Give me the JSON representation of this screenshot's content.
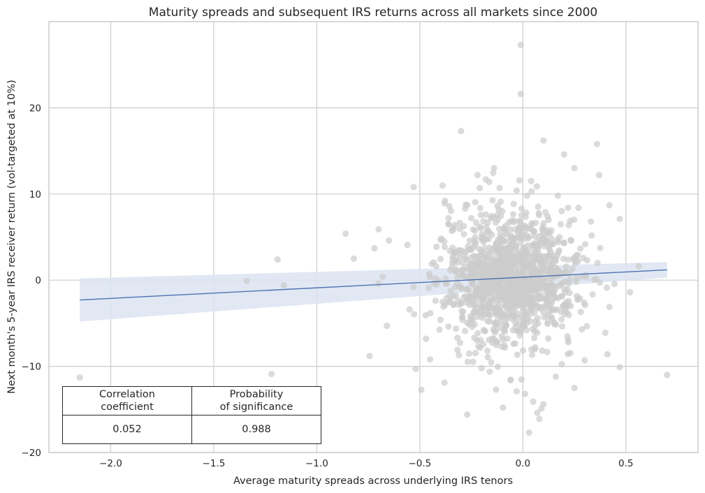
{
  "chart_data": {
    "type": "scatter",
    "title": "Maturity spreads and subsequent IRS returns across all markets since 2000",
    "xlabel": "Average maturity spreads across underlying IRS tenors",
    "ylabel": "Next month's 5-year IRS receiver return (vol-targeted at 10%)",
    "xlim": [
      -2.3,
      0.85
    ],
    "ylim": [
      -20,
      30
    ],
    "xticks": [
      -2.0,
      -1.5,
      -1.0,
      -0.5,
      0.0,
      0.5
    ],
    "xtick_labels": [
      "−2.0",
      "−1.5",
      "−1.0",
      "−0.5",
      "0.0",
      "0.5"
    ],
    "yticks": [
      -20,
      -10,
      0,
      10,
      20
    ],
    "ytick_labels": [
      "−20",
      "−10",
      "0",
      "10",
      "20"
    ],
    "grid": true,
    "point_color": "#cccccc",
    "line_color": "#4c72b0",
    "band_color": "#dce4f1",
    "regression": {
      "x": [
        -2.15,
        0.7
      ],
      "y": [
        -2.3,
        1.2
      ],
      "ci_lower": [
        -4.8,
        0.3
      ],
      "ci_upper": [
        0.2,
        2.1
      ]
    },
    "points": [
      {
        "x": -0.01,
        "y": 27.3
      },
      {
        "x": -0.01,
        "y": 21.6
      },
      {
        "x": -0.3,
        "y": 17.3
      },
      {
        "x": 0.1,
        "y": 16.2
      },
      {
        "x": 0.36,
        "y": 15.8
      },
      {
        "x": 0.2,
        "y": 14.6
      },
      {
        "x": -0.14,
        "y": 13.0
      },
      {
        "x": 0.25,
        "y": 13.0
      },
      {
        "x": -0.22,
        "y": 12.2
      },
      {
        "x": 0.37,
        "y": 12.2
      },
      {
        "x": -0.18,
        "y": 11.7
      },
      {
        "x": 0.04,
        "y": 11.5
      },
      {
        "x": -0.53,
        "y": 10.8
      },
      {
        "x": -0.03,
        "y": 10.4
      },
      {
        "x": 0.17,
        "y": 9.8
      },
      {
        "x": -0.38,
        "y": 8.9
      },
      {
        "x": 0.42,
        "y": 8.7
      },
      {
        "x": 0.27,
        "y": 8.4
      },
      {
        "x": -0.86,
        "y": 5.4
      },
      {
        "x": -0.7,
        "y": 5.9
      },
      {
        "x": -0.65,
        "y": 4.6
      },
      {
        "x": -0.56,
        "y": 4.1
      },
      {
        "x": -0.72,
        "y": 3.7
      },
      {
        "x": 0.47,
        "y": 7.1
      },
      {
        "x": -1.19,
        "y": 2.4
      },
      {
        "x": -0.82,
        "y": 2.5
      },
      {
        "x": -0.68,
        "y": 0.4
      },
      {
        "x": -0.7,
        "y": -0.4
      },
      {
        "x": -1.34,
        "y": -0.1
      },
      {
        "x": -1.16,
        "y": -0.6
      },
      {
        "x": -0.53,
        "y": -0.8
      },
      {
        "x": -0.66,
        "y": -5.3
      },
      {
        "x": -0.55,
        "y": -3.4
      },
      {
        "x": -0.52,
        "y": -10.3
      },
      {
        "x": 0.52,
        "y": -1.4
      },
      {
        "x": 0.42,
        "y": -3.1
      },
      {
        "x": 0.4,
        "y": -6.1
      },
      {
        "x": 0.41,
        "y": -8.6
      },
      {
        "x": 0.47,
        "y": -10.1
      },
      {
        "x": 0.7,
        "y": -11.0
      },
      {
        "x": -2.15,
        "y": -11.3
      },
      {
        "x": -1.22,
        "y": -10.9
      },
      {
        "x": -0.38,
        "y": -11.9
      },
      {
        "x": -0.27,
        "y": -15.6
      },
      {
        "x": -0.13,
        "y": -12.7
      },
      {
        "x": -0.03,
        "y": -12.9
      },
      {
        "x": 0.01,
        "y": -13.2
      },
      {
        "x": 0.05,
        "y": -14.1
      },
      {
        "x": 0.1,
        "y": -14.4
      },
      {
        "x": 0.09,
        "y": -14.9
      },
      {
        "x": 0.08,
        "y": -16.1
      },
      {
        "x": 0.07,
        "y": -15.4
      },
      {
        "x": 0.03,
        "y": -17.7
      },
      {
        "x": 0.25,
        "y": -12.5
      },
      {
        "x": -0.2,
        "y": -10.2
      },
      {
        "x": -0.45,
        "y": -9.2
      },
      {
        "x": -0.31,
        "y": -8.7
      },
      {
        "x": 0.16,
        "y": -11.2
      },
      {
        "x": -0.06,
        "y": -11.6
      },
      {
        "x": 0.3,
        "y": -9.3
      },
      {
        "x": -0.47,
        "y": -6.8
      },
      {
        "x": -0.4,
        "y": -4.6
      },
      {
        "x": -0.33,
        "y": 6.4
      },
      {
        "x": 0.33,
        "y": 6.8
      },
      {
        "x": -0.1,
        "y": 8.0
      },
      {
        "x": 0.12,
        "y": 7.4
      },
      {
        "x": -0.25,
        "y": 7.2
      },
      {
        "x": 0.22,
        "y": -7.2
      }
    ],
    "cloud": {
      "x_mean": -0.06,
      "x_sd": 0.16,
      "y_mean": 0.2,
      "y_sd": 3.7,
      "count": 1250,
      "seed": 7
    }
  },
  "stats_table": {
    "header_left_line1": "Correlation",
    "header_left_line2": "coefficient",
    "header_right_line1": "Probability",
    "header_right_line2": "of significance",
    "correlation": "0.052",
    "probability": "0.988"
  }
}
